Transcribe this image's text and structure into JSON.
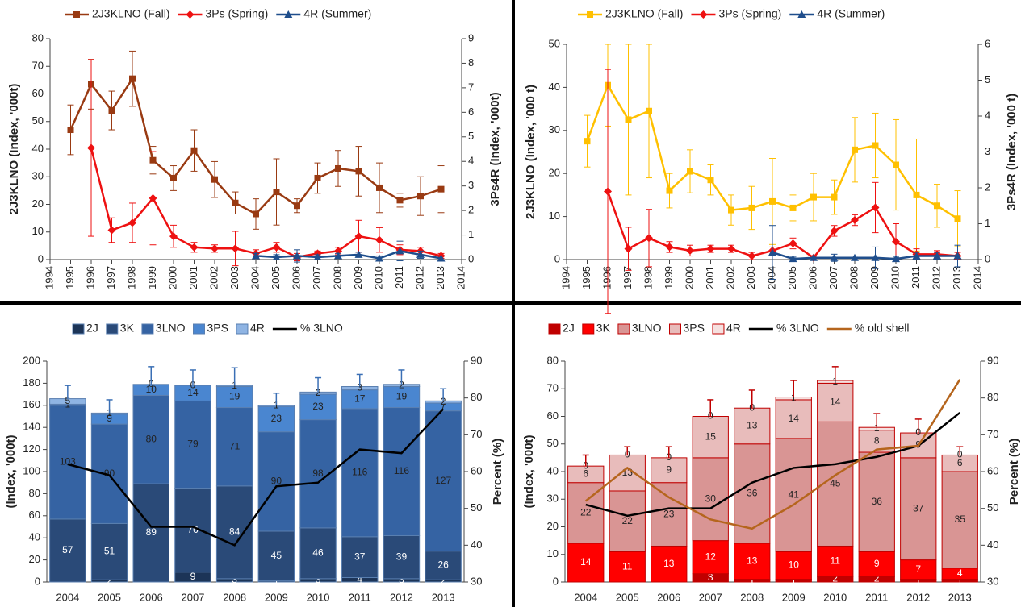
{
  "chart_data": [
    {
      "type": "line",
      "x": [
        1995,
        1996,
        1997,
        1998,
        1999,
        2000,
        2001,
        2002,
        2003,
        2004,
        2005,
        2006,
        2007,
        2008,
        2009,
        2010,
        2011,
        2012,
        2013
      ],
      "xlim": [
        1994,
        2014
      ],
      "xticks": [
        1994,
        1995,
        1996,
        1997,
        1998,
        1999,
        2000,
        2001,
        2002,
        2003,
        2004,
        2005,
        2006,
        2007,
        2008,
        2009,
        2010,
        2011,
        2012,
        2013,
        2014
      ],
      "ylim": [
        0,
        80
      ],
      "yticks": [
        0,
        10,
        20,
        30,
        40,
        50,
        60,
        70,
        80
      ],
      "y2lim": [
        0,
        9
      ],
      "y2ticks": [
        0,
        1,
        2,
        3,
        4,
        5,
        6,
        7,
        8,
        9
      ],
      "ylabel": "2J3KLNO (Index, '000t)",
      "y2label": "3Ps4R (Index, '000t)",
      "series": [
        {
          "name": "2J3KLNO (Fall)",
          "color": "#993a12",
          "marker": "square",
          "values": [
            47,
            63.5,
            54,
            65.5,
            36,
            29.5,
            39.5,
            29,
            20.5,
            16.5,
            24.5,
            19.5,
            29.5,
            33,
            32,
            26,
            21.5,
            23,
            25.5
          ],
          "errors": [
            9,
            9,
            7,
            10,
            5,
            4.5,
            7.5,
            6.5,
            4,
            5.5,
            12,
            2.5,
            5.5,
            6.5,
            9,
            9,
            2.5,
            7,
            8.5
          ]
        },
        {
          "name": "3Ps (Spring)",
          "color": "#ee1111",
          "marker": "diamond",
          "axis": "y2",
          "values": [
            null,
            4.55,
            1.2,
            1.5,
            2.5,
            0.95,
            0.5,
            0.45,
            0.45,
            0.25,
            0.5,
            0.1,
            0.25,
            0.35,
            0.95,
            0.8,
            0.4,
            0.35,
            0.15
          ],
          "errors": [
            null,
            3.6,
            0.5,
            0.8,
            1.9,
            0.45,
            0.2,
            0.15,
            0.7,
            0.15,
            0.2,
            0.15,
            0.1,
            0.15,
            0.65,
            0.5,
            0.2,
            0.15,
            0.1
          ]
        },
        {
          "name": "4R (Summer)",
          "color": "#1f4e8c",
          "marker": "triangle",
          "axis": "y2",
          "values": [
            null,
            null,
            null,
            null,
            null,
            null,
            null,
            null,
            null,
            0.15,
            0.1,
            0.15,
            0.1,
            0.15,
            0.2,
            0.05,
            0.35,
            0.2,
            0.05
          ],
          "errors": [
            null,
            null,
            null,
            null,
            null,
            null,
            null,
            null,
            null,
            0.1,
            0.1,
            0.25,
            0.1,
            0.1,
            0.1,
            0.1,
            0.4,
            0.15,
            0.1
          ]
        }
      ]
    },
    {
      "type": "line",
      "x": [
        1995,
        1996,
        1997,
        1998,
        1999,
        2000,
        2001,
        2002,
        2003,
        2004,
        2005,
        2006,
        2007,
        2008,
        2009,
        2010,
        2011,
        2012,
        2013
      ],
      "xlim": [
        1994,
        2014
      ],
      "xticks": [
        1994,
        1995,
        1996,
        1997,
        1998,
        1999,
        2000,
        2001,
        2002,
        2003,
        2004,
        2005,
        2006,
        2007,
        2008,
        2009,
        2010,
        2011,
        2012,
        2013,
        2014
      ],
      "ylim": [
        0,
        50
      ],
      "yticks": [
        0,
        10,
        20,
        30,
        40,
        50
      ],
      "y2lim": [
        0,
        6
      ],
      "y2ticks": [
        0,
        1,
        2,
        3,
        4,
        5,
        6
      ],
      "ylabel": "2J3KLNO (Index, '000 t)",
      "y2label": "3Ps4R (Index, '000 t)",
      "series": [
        {
          "name": "2J3KLNO (Fall)",
          "color": "#ffc000",
          "marker": "square",
          "values": [
            27.5,
            40.5,
            32.5,
            34.5,
            16,
            20.5,
            18.5,
            11.5,
            12,
            13.5,
            12,
            14.5,
            14.5,
            25.5,
            26.5,
            22,
            15,
            12.5,
            9.5
          ],
          "errors": [
            6,
            9.5,
            17.5,
            15.5,
            4,
            5,
            3.5,
            3.5,
            5,
            10,
            3,
            5.5,
            4,
            7.5,
            7.5,
            10.5,
            13,
            5,
            6.5
          ]
        },
        {
          "name": "3Ps (Spring)",
          "color": "#ee1111",
          "marker": "diamond",
          "axis": "y2",
          "values": [
            null,
            1.9,
            0.3,
            0.6,
            0.35,
            0.25,
            0.3,
            0.3,
            0.1,
            0.25,
            0.45,
            0.05,
            0.8,
            1.1,
            1.45,
            0.5,
            0.15,
            0.15,
            0.1
          ],
          "errors": [
            null,
            3.4,
            0.6,
            0.8,
            0.15,
            0.15,
            0.1,
            0.1,
            0.1,
            0.1,
            0.15,
            0.05,
            0.15,
            0.15,
            0.7,
            0.5,
            0.15,
            0.1,
            0.1
          ]
        },
        {
          "name": "4R (Summer)",
          "color": "#1f4e8c",
          "marker": "triangle",
          "axis": "y2",
          "values": [
            null,
            null,
            null,
            null,
            null,
            null,
            null,
            null,
            null,
            0.2,
            0.02,
            0.05,
            0.05,
            0.05,
            0.05,
            0.02,
            0.1,
            0.1,
            0.1
          ],
          "errors": [
            null,
            null,
            null,
            null,
            null,
            null,
            null,
            null,
            null,
            0.75,
            0.05,
            0.05,
            0.1,
            0.05,
            0.3,
            0.05,
            0.1,
            0.1,
            0.3
          ]
        }
      ]
    },
    {
      "type": "bar",
      "stacked": true,
      "categories": [
        "2004",
        "2005",
        "2006",
        "2007",
        "2008",
        "2009",
        "2010",
        "2011",
        "2012",
        "2013"
      ],
      "ylim": [
        0,
        200
      ],
      "yticks": [
        0,
        20,
        40,
        60,
        80,
        100,
        120,
        140,
        160,
        180,
        200
      ],
      "y2lim": [
        30,
        90
      ],
      "y2ticks": [
        30,
        40,
        50,
        60,
        70,
        80,
        90
      ],
      "ylabel": "(Index, '000t)",
      "y2label": "Percent (%)",
      "series": [
        {
          "name": "2J",
          "color": "#1c3457",
          "values": [
            0,
            2,
            0,
            9,
            3,
            1,
            3,
            4,
            3,
            2
          ]
        },
        {
          "name": "3K",
          "color": "#2a4a78",
          "values": [
            57,
            51,
            89,
            76,
            84,
            45,
            46,
            37,
            39,
            26
          ]
        },
        {
          "name": "3LNO",
          "color": "#3563a3",
          "values": [
            103,
            90,
            80,
            79,
            71,
            90,
            98,
            116,
            116,
            127
          ]
        },
        {
          "name": "3PS",
          "color": "#4a86d0",
          "values": [
            1,
            9,
            10,
            14,
            19,
            23,
            23,
            17,
            19,
            7
          ]
        },
        {
          "name": "4R",
          "color": "#8fb4e3",
          "values": [
            5,
            1,
            0,
            0,
            1,
            1,
            2,
            3,
            2,
            2
          ],
          "errors": [
            12,
            12,
            16,
            14,
            16,
            11,
            13,
            11,
            13,
            11
          ]
        },
        {
          "name": "% 3LNO",
          "color": "#000000",
          "type": "line",
          "axis": "y2",
          "values": [
            62,
            59,
            45,
            45,
            40,
            56,
            57,
            66,
            65,
            77
          ]
        }
      ]
    },
    {
      "type": "bar",
      "stacked": true,
      "categories": [
        "2004",
        "2005",
        "2006",
        "2007",
        "2008",
        "2009",
        "2010",
        "2011",
        "2012",
        "2013"
      ],
      "ylim": [
        0,
        80
      ],
      "yticks": [
        0,
        10,
        20,
        30,
        40,
        50,
        60,
        70,
        80
      ],
      "y2lim": [
        30,
        90
      ],
      "y2ticks": [
        30,
        40,
        50,
        60,
        70,
        80,
        90
      ],
      "ylabel": "(Index, '000t)",
      "y2label": "Percent (%)",
      "series": [
        {
          "name": "2J",
          "color": "#c00000",
          "values": [
            0,
            0,
            0,
            3,
            1,
            1,
            2,
            2,
            1,
            1
          ]
        },
        {
          "name": "3K",
          "color": "#ff0000",
          "values": [
            14,
            11,
            13,
            12,
            13,
            10,
            11,
            9,
            7,
            4
          ]
        },
        {
          "name": "3LNO",
          "color": "#d99594",
          "values": [
            22,
            22,
            23,
            30,
            36,
            41,
            45,
            36,
            37,
            35
          ]
        },
        {
          "name": "3PS",
          "color": "#e8bcbb",
          "values": [
            6,
            13,
            9,
            15,
            13,
            14,
            14,
            8,
            9,
            6
          ]
        },
        {
          "name": "4R",
          "color": "#f5e0df",
          "values": [
            0,
            0,
            0,
            0,
            0,
            1,
            1,
            1,
            0,
            0
          ],
          "errors": [
            4,
            3,
            4,
            6,
            6.5,
            6,
            5,
            5,
            5,
            3
          ]
        },
        {
          "name": "% 3LNO",
          "color": "#000000",
          "type": "line",
          "axis": "y2",
          "values": [
            51,
            48,
            50,
            50,
            57,
            61,
            62,
            64,
            67,
            76
          ]
        },
        {
          "name": "% old shell",
          "color": "#b5651d",
          "type": "line",
          "axis": "y2",
          "values": [
            52,
            61,
            53,
            47,
            44.5,
            51,
            59,
            66,
            67,
            85
          ]
        }
      ]
    }
  ]
}
